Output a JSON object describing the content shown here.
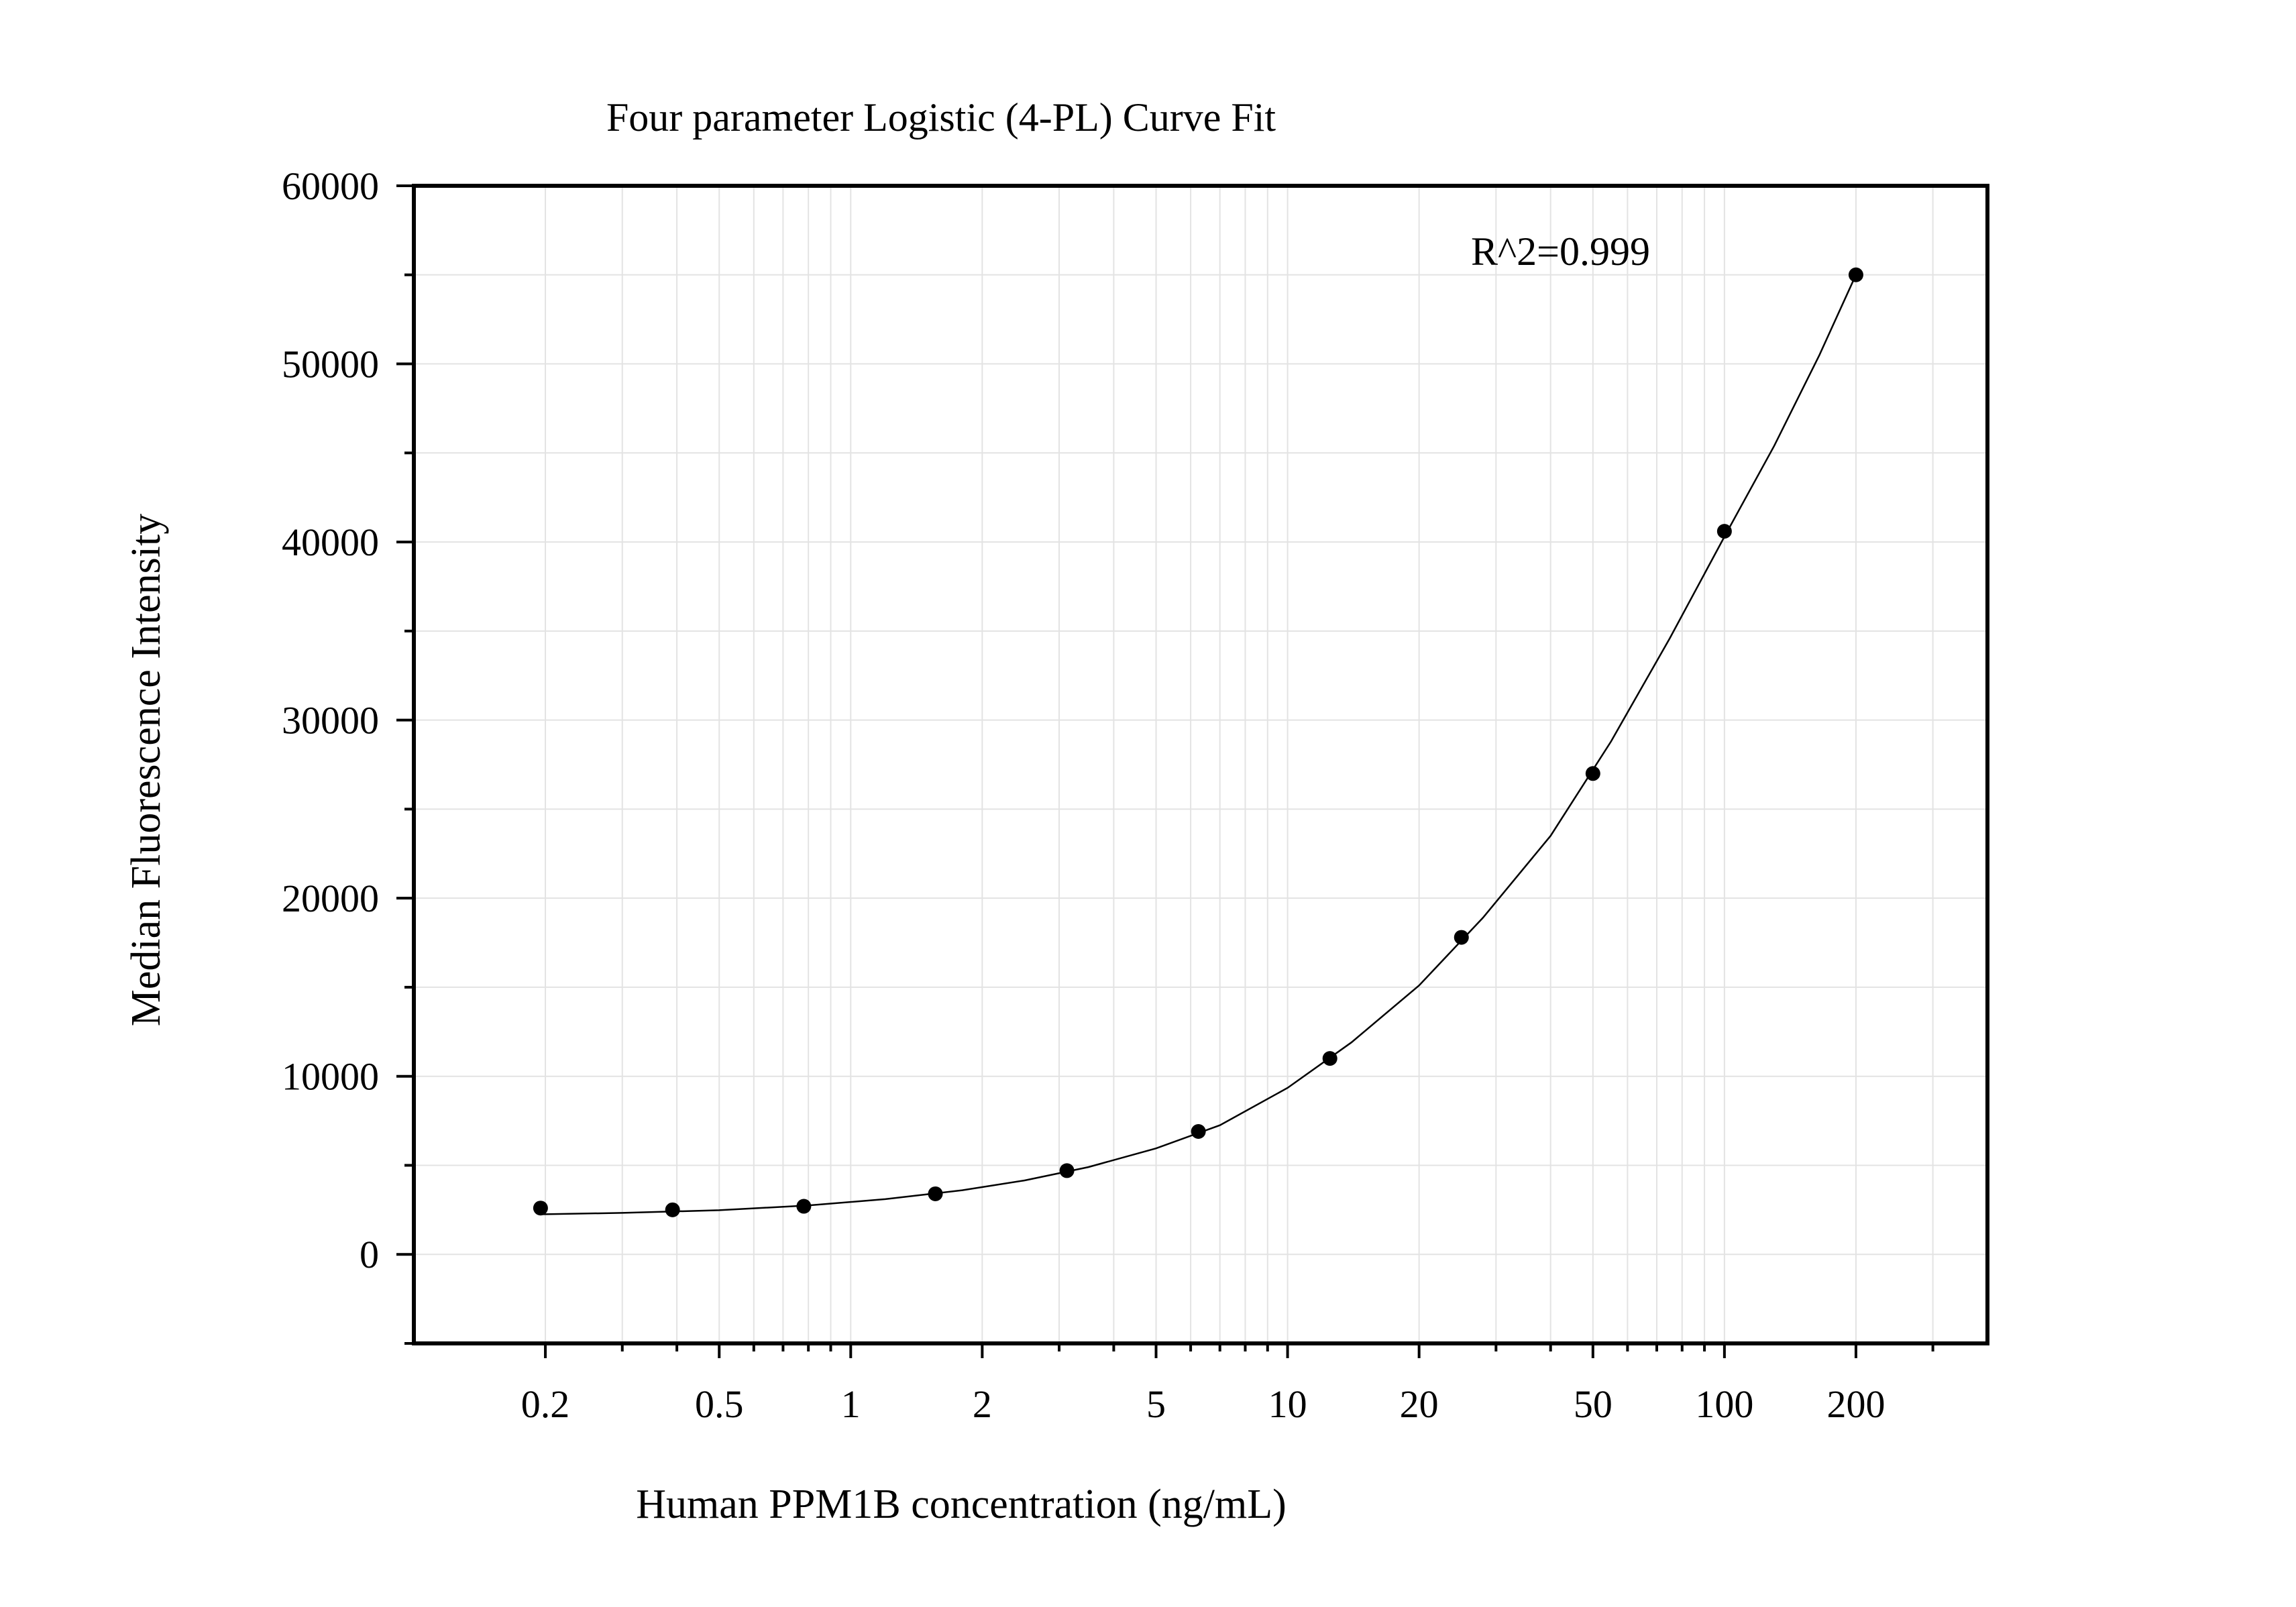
{
  "chart_data": {
    "type": "scatter",
    "title": "Four parameter Logistic (4-PL) Curve Fit",
    "xlabel": "Human PPM1B concentration (ng/mL)",
    "ylabel": "Median Fluorescence Intensity",
    "annotation": "R^2=0.999",
    "x_scale": "log",
    "xlim": [
      0.1,
      400
    ],
    "ylim": [
      -5000,
      60000
    ],
    "x_ticks": [
      0.2,
      0.5,
      1,
      2,
      5,
      10,
      20,
      50,
      100,
      200
    ],
    "x_tick_labels": [
      "0.2",
      "0.5",
      "1",
      "2",
      "5",
      "10",
      "20",
      "50",
      "100",
      "200"
    ],
    "y_ticks": [
      0,
      10000,
      20000,
      30000,
      40000,
      50000,
      60000
    ],
    "y_tick_labels": [
      "0",
      "10000",
      "20000",
      "30000",
      "40000",
      "50000",
      "60000"
    ],
    "grid": true,
    "series": [
      {
        "marker": "filled-circle",
        "color": "#000000",
        "x": [
          0.195,
          0.391,
          0.781,
          1.5625,
          3.125,
          6.25,
          12.5,
          25,
          50,
          100,
          200
        ],
        "y": [
          2600,
          2500,
          2700,
          3400,
          4700,
          6900,
          11000,
          17800,
          27000,
          40600,
          55000
        ]
      }
    ],
    "fit": {
      "model": "4-PL",
      "x_range": [
        0.195,
        200
      ],
      "points": [
        [
          0.195,
          2250
        ],
        [
          0.3,
          2330
        ],
        [
          0.5,
          2480
        ],
        [
          0.8,
          2750
        ],
        [
          1.2,
          3100
        ],
        [
          1.8,
          3600
        ],
        [
          2.5,
          4150
        ],
        [
          3.5,
          4900
        ],
        [
          5,
          5950
        ],
        [
          7,
          7250
        ],
        [
          10,
          9350
        ],
        [
          14,
          11900
        ],
        [
          20,
          15100
        ],
        [
          28,
          18900
        ],
        [
          40,
          23500
        ],
        [
          55,
          28800
        ],
        [
          75,
          34600
        ],
        [
          100,
          40300
        ],
        [
          130,
          45400
        ],
        [
          165,
          50500
        ],
        [
          200,
          55000
        ]
      ],
      "color": "#000000"
    }
  }
}
